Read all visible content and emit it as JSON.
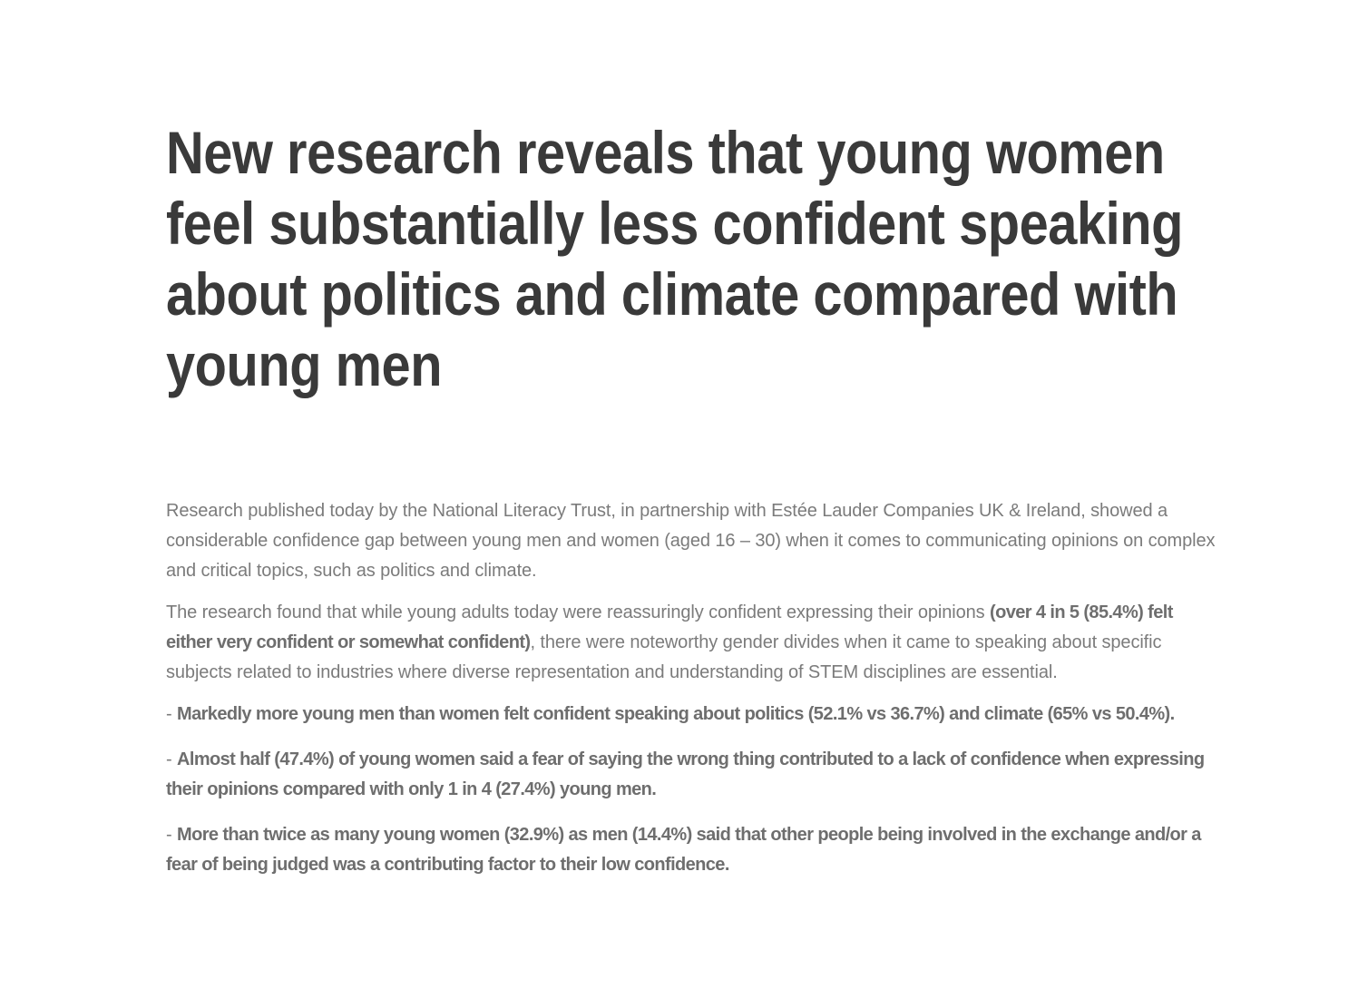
{
  "theme": {
    "background_color": "#ffffff",
    "headline_color": "#3a3a3a",
    "body_text_color": "#7b7b7b",
    "bold_text_color": "#6e6e6e"
  },
  "article": {
    "headline_lines": [
      "New research reveals that young women",
      "feel substantially less confident speaking",
      "about politics and climate compared with",
      "young men"
    ],
    "intro": "Research published today by the National Literacy Trust, in partnership with Estée Lauder Companies UK & Ireland, showed a considerable confidence gap between young men and women (aged 16 – 30) when it comes to communicating opinions on complex and critical topics, such as politics and climate.",
    "findings": {
      "before": "The research found that while young adults today were reassuringly confident expressing their opinions ",
      "bold": "(over 4 in 5 (85.4%) felt either very confident or somewhat confident)",
      "after": ", there were noteworthy gender divides when it came to speaking about specific subjects related to industries where diverse representation and understanding of STEM disciplines are essential."
    },
    "bullets": [
      {
        "prefix": "- ",
        "text": "Markedly more young men than women felt confident speaking about politics (52.1% vs 36.7%) and climate (65% vs 50.4%)."
      },
      {
        "prefix": "- ",
        "text": "Almost half (47.4%) of young women said a fear of saying the wrong thing contributed to a lack of confidence when expressing their opinions compared with only 1 in 4 (27.4%) young men."
      },
      {
        "prefix": "- ",
        "text": "More than twice as many young women (32.9%) as men (14.4%) said that other people being involved in the exchange and/or a fear of being judged was a contributing factor to their low confidence."
      }
    ]
  }
}
